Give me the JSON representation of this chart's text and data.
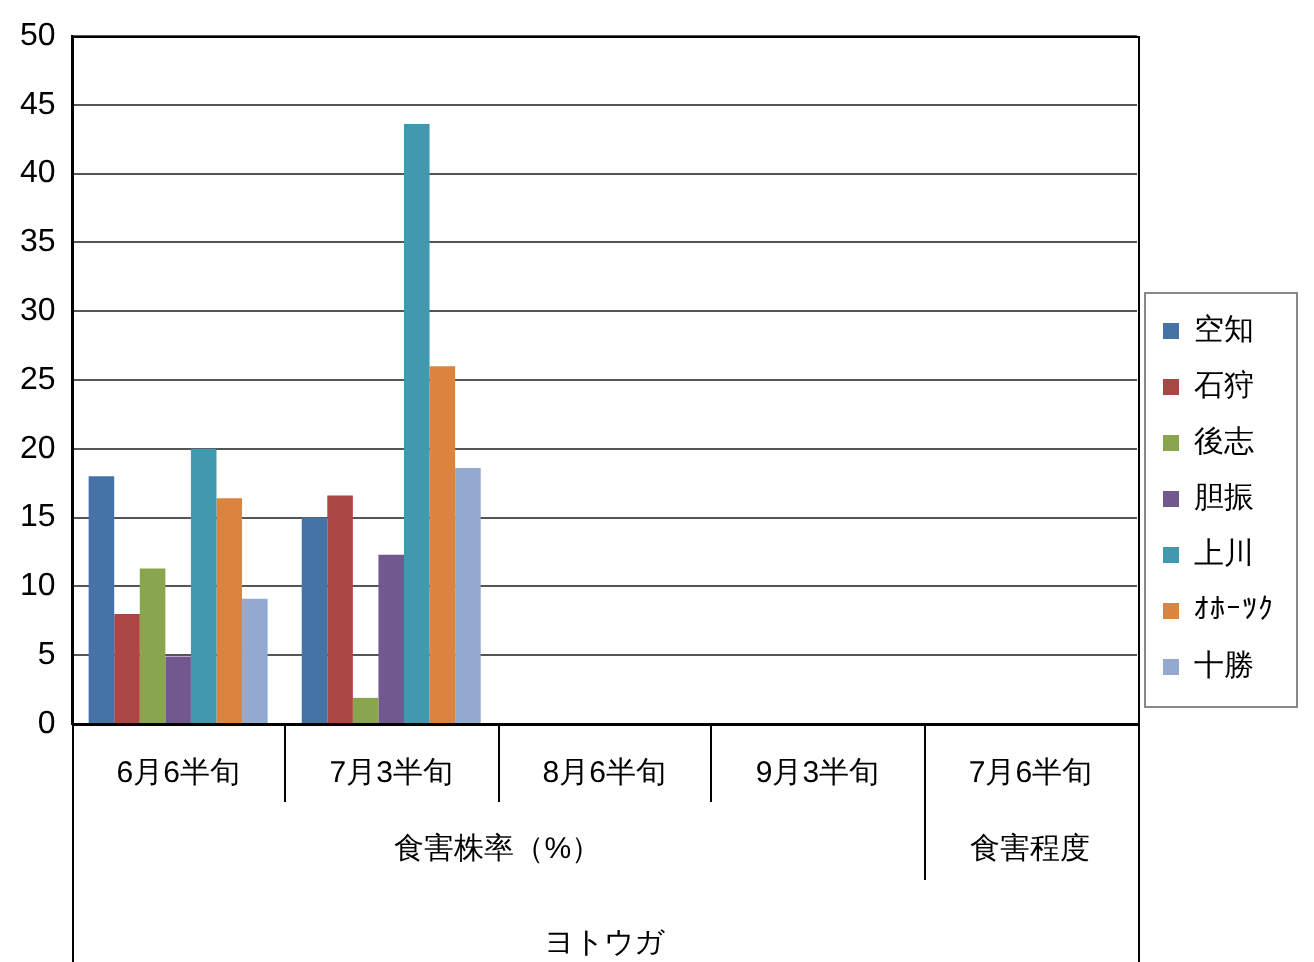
{
  "chart_data": {
    "type": "bar",
    "categories": [
      "6月6半旬",
      "7月3半旬",
      "8月6半旬",
      "9月3半旬",
      "7月6半旬"
    ],
    "series": [
      {
        "name": "空知",
        "color": "#4572a7",
        "values": [
          18,
          15,
          null,
          null,
          null
        ]
      },
      {
        "name": "石狩",
        "color": "#aa4643",
        "values": [
          8,
          16.6,
          null,
          null,
          null
        ]
      },
      {
        "name": "後志",
        "color": "#89a54e",
        "values": [
          11.3,
          1.9,
          null,
          null,
          null
        ]
      },
      {
        "name": "胆振",
        "color": "#71588f",
        "values": [
          4.9,
          12.3,
          null,
          null,
          null
        ]
      },
      {
        "name": "上川",
        "color": "#4198af",
        "values": [
          20,
          43.6,
          null,
          null,
          null
        ]
      },
      {
        "name": "ｵﾎｰﾂｸ",
        "color": "#db843d",
        "values": [
          16.4,
          26,
          null,
          null,
          null
        ]
      },
      {
        "name": "十勝",
        "color": "#93a9cf",
        "values": [
          9.1,
          18.6,
          null,
          null,
          null
        ]
      }
    ],
    "ylim": [
      0,
      50
    ],
    "yticks": [
      0,
      5,
      10,
      15,
      20,
      25,
      30,
      35,
      40,
      45,
      50
    ],
    "grid": "y",
    "legend": "right",
    "xlabel": "ヨトウガ",
    "annotations": [
      "食害株率（%）",
      "食害程度"
    ]
  }
}
